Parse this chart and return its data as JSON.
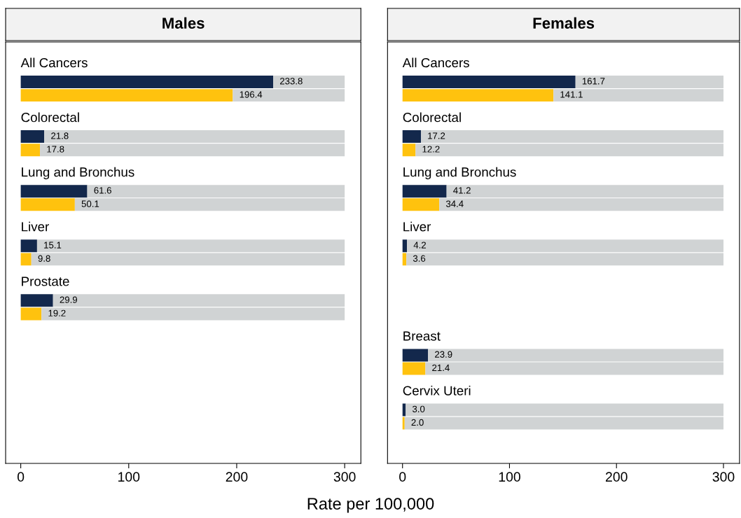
{
  "chart_data": [
    {
      "type": "bar",
      "orientation": "horizontal",
      "stacked": true,
      "title": "Males",
      "xlabel": "Rate per 100,000",
      "categories": [
        "All Cancers",
        null,
        "Colorectal",
        null,
        "Lung and Bronchus",
        null,
        "Liver",
        null,
        "Prostate",
        null,
        null,
        null,
        null,
        null
      ],
      "xlim": [
        -14,
        315
      ],
      "xticks": [
        0,
        100,
        200,
        300
      ],
      "grid": false,
      "series": [
        {
          "colors": [
            "#13284c",
            "#ffc20e",
            "#13284c",
            "#ffc20e",
            "#13284c",
            "#ffc20e",
            "#13284c",
            "#ffc20e",
            "#13284c",
            "#ffc20e",
            null,
            null,
            null,
            null
          ],
          "values": [
            233.8,
            196.4,
            21.8,
            17.8,
            61.6,
            50.1,
            15.1,
            9.8,
            29.9,
            19.2,
            null,
            null,
            null,
            null
          ],
          "value_labels": [
            "233.8",
            "196.4",
            "21.8",
            "17.8",
            "61.6",
            "50.1",
            "15.1",
            "9.8",
            "29.9",
            "19.2",
            null,
            null,
            null,
            null
          ]
        },
        {
          "color": "#d0d3d4",
          "values": [
            66.2,
            103.6,
            278.2,
            282.2,
            238.4,
            249.9,
            284.9,
            290.2,
            270.1,
            280.8,
            null,
            null,
            null,
            null
          ]
        }
      ]
    },
    {
      "type": "bar",
      "orientation": "horizontal",
      "stacked": true,
      "title": "Females",
      "categories": [
        "All Cancers",
        null,
        "Colorectal",
        null,
        "Lung and Bronchus",
        null,
        "Liver",
        null,
        null,
        null,
        "Breast",
        null,
        "Cervix Uteri",
        null
      ],
      "xlim": [
        -14,
        315
      ],
      "xticks": [
        0,
        100,
        200,
        300
      ],
      "grid": false,
      "series": [
        {
          "colors": [
            "#13284c",
            "#ffc20e",
            "#13284c",
            "#ffc20e",
            "#13284c",
            "#ffc20e",
            "#13284c",
            "#ffc20e",
            null,
            null,
            "#13284c",
            "#ffc20e",
            "#13284c",
            "#ffc20e"
          ],
          "values": [
            161.7,
            141.1,
            17.2,
            12.2,
            41.2,
            34.4,
            4.2,
            3.6,
            null,
            null,
            23.9,
            21.4,
            3.0,
            2.0
          ],
          "value_labels": [
            "161.7",
            "141.1",
            "17.2",
            "12.2",
            "41.2",
            "34.4",
            "4.2",
            "3.6",
            null,
            null,
            "23.9",
            "21.4",
            "3.0",
            "2.0"
          ]
        },
        {
          "color": "#d0d3d4",
          "values": [
            138.3,
            158.9,
            282.8,
            287.8,
            258.8,
            265.6,
            295.8,
            296.4,
            null,
            null,
            276.1,
            278.6,
            297.0,
            298.0
          ]
        }
      ]
    }
  ]
}
